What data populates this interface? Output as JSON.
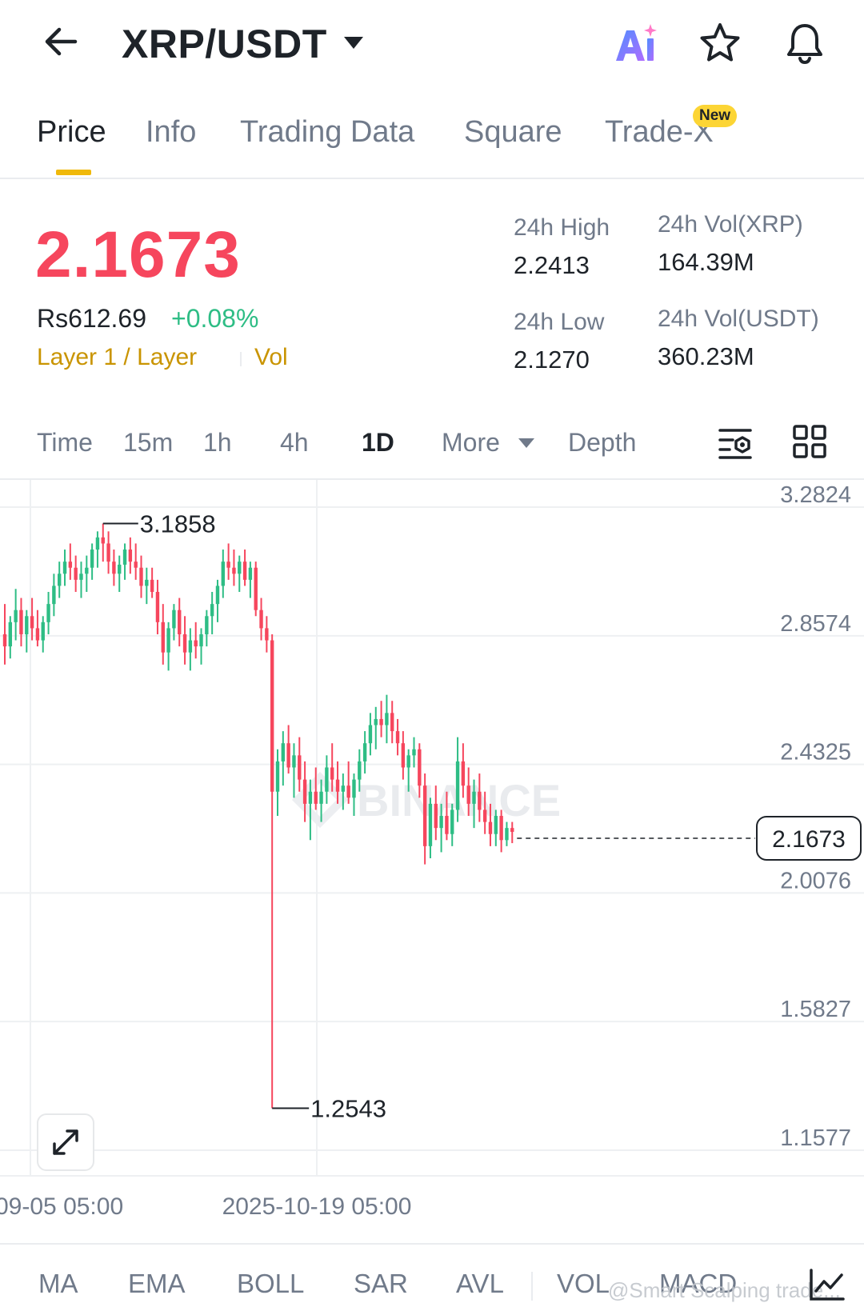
{
  "header": {
    "pair": "XRP/USDT",
    "icons": [
      "back-arrow-icon",
      "chevron-down-icon",
      "ai-icon",
      "star-icon",
      "bell-icon"
    ]
  },
  "tabs": [
    {
      "label": "Price",
      "active": true
    },
    {
      "label": "Info",
      "active": false
    },
    {
      "label": "Trading Data",
      "active": false
    },
    {
      "label": "Square",
      "active": false
    },
    {
      "label": "Trade-X",
      "active": false,
      "badge": "New"
    }
  ],
  "ticker": {
    "last_price": "2.1673",
    "fiat_price": "Rs612.69",
    "change_pct": "+0.08%",
    "tag": "Layer 1 / Layer",
    "tag2": "Vol",
    "high_label": "24h High",
    "high_value": "2.2413",
    "low_label": "24h Low",
    "low_value": "2.1270",
    "vol_base_label": "24h Vol(XRP)",
    "vol_base_value": "164.39M",
    "vol_quote_label": "24h Vol(USDT)",
    "vol_quote_value": "360.23M"
  },
  "intervals": [
    {
      "label": "Time",
      "active": false
    },
    {
      "label": "15m",
      "active": false
    },
    {
      "label": "1h",
      "active": false
    },
    {
      "label": "4h",
      "active": false
    },
    {
      "label": "1D",
      "active": true
    },
    {
      "label": "More",
      "active": false
    },
    {
      "label": "Depth",
      "active": false
    }
  ],
  "indicators": [
    "MA",
    "EMA",
    "BOLL",
    "SAR",
    "AVL",
    "VOL",
    "MACD"
  ],
  "watermark": {
    "brand": "BINANCE",
    "user": "@Smart Scalping trade..."
  },
  "colors": {
    "up": "#2ebd85",
    "down": "#f6465d",
    "accent": "#f0b90b"
  },
  "chart_data": {
    "type": "candlestick",
    "y_axis_ticks": [
      "3.2824",
      "2.8574",
      "2.4325",
      "2.0076",
      "1.5827",
      "1.1577"
    ],
    "ylim": [
      1.1577,
      3.2824
    ],
    "x_axis_ticks": [
      "09-05 05:00",
      "2025-10-19 05:00"
    ],
    "last_price_label": "2.1673",
    "max_annotation": "3.1858",
    "min_annotation": "1.2543",
    "grid": true,
    "candles": [
      [
        2.82,
        2.92,
        2.72,
        2.78
      ],
      [
        2.78,
        2.88,
        2.74,
        2.86
      ],
      [
        2.86,
        2.97,
        2.8,
        2.9
      ],
      [
        2.9,
        2.94,
        2.78,
        2.82
      ],
      [
        2.82,
        2.9,
        2.76,
        2.88
      ],
      [
        2.88,
        2.94,
        2.8,
        2.84
      ],
      [
        2.84,
        2.9,
        2.78,
        2.8
      ],
      [
        2.8,
        2.88,
        2.76,
        2.86
      ],
      [
        2.86,
        2.96,
        2.82,
        2.92
      ],
      [
        2.92,
        3.02,
        2.88,
        2.98
      ],
      [
        2.98,
        3.06,
        2.94,
        3.02
      ],
      [
        3.02,
        3.1,
        2.98,
        3.06
      ],
      [
        3.06,
        3.12,
        3.0,
        3.04
      ],
      [
        3.04,
        3.08,
        2.96,
        3.0
      ],
      [
        3.0,
        3.06,
        2.94,
        3.02
      ],
      [
        3.02,
        3.08,
        2.96,
        3.04
      ],
      [
        3.04,
        3.12,
        3.0,
        3.1
      ],
      [
        3.1,
        3.16,
        3.04,
        3.14
      ],
      [
        3.14,
        3.1858,
        3.06,
        3.12
      ],
      [
        3.12,
        3.16,
        3.02,
        3.06
      ],
      [
        3.06,
        3.1,
        2.98,
        3.02
      ],
      [
        3.02,
        3.08,
        2.96,
        3.05
      ],
      [
        3.05,
        3.12,
        3.0,
        3.1
      ],
      [
        3.1,
        3.14,
        3.02,
        3.06
      ],
      [
        3.06,
        3.12,
        3.0,
        3.04
      ],
      [
        3.04,
        3.08,
        2.94,
        2.98
      ],
      [
        2.98,
        3.04,
        2.92,
        3.0
      ],
      [
        3.0,
        3.04,
        2.94,
        2.96
      ],
      [
        2.96,
        3.0,
        2.82,
        2.86
      ],
      [
        2.86,
        2.92,
        2.72,
        2.76
      ],
      [
        2.76,
        2.86,
        2.7,
        2.84
      ],
      [
        2.84,
        2.92,
        2.8,
        2.9
      ],
      [
        2.9,
        2.94,
        2.78,
        2.82
      ],
      [
        2.82,
        2.88,
        2.72,
        2.76
      ],
      [
        2.76,
        2.84,
        2.7,
        2.8
      ],
      [
        2.8,
        2.86,
        2.74,
        2.78
      ],
      [
        2.78,
        2.84,
        2.72,
        2.82
      ],
      [
        2.82,
        2.9,
        2.78,
        2.88
      ],
      [
        2.88,
        2.96,
        2.82,
        2.92
      ],
      [
        2.92,
        3.0,
        2.86,
        2.98
      ],
      [
        2.98,
        3.1,
        2.94,
        3.06
      ],
      [
        3.06,
        3.12,
        3.0,
        3.04
      ],
      [
        3.04,
        3.1,
        2.98,
        3.02
      ],
      [
        3.02,
        3.08,
        2.96,
        3.06
      ],
      [
        3.06,
        3.1,
        2.98,
        3.0
      ],
      [
        3.0,
        3.06,
        2.94,
        3.04
      ],
      [
        3.04,
        3.06,
        2.88,
        2.9
      ],
      [
        2.9,
        2.94,
        2.8,
        2.84
      ],
      [
        2.84,
        2.88,
        2.76,
        2.8
      ],
      [
        2.8,
        2.82,
        1.2543,
        2.3
      ],
      [
        2.3,
        2.44,
        2.22,
        2.4
      ],
      [
        2.4,
        2.5,
        2.32,
        2.46
      ],
      [
        2.46,
        2.52,
        2.36,
        2.38
      ],
      [
        2.38,
        2.46,
        2.28,
        2.42
      ],
      [
        2.42,
        2.48,
        2.3,
        2.34
      ],
      [
        2.34,
        2.4,
        2.2,
        2.26
      ],
      [
        2.26,
        2.34,
        2.14,
        2.3
      ],
      [
        2.3,
        2.38,
        2.24,
        2.26
      ],
      [
        2.26,
        2.34,
        2.2,
        2.3
      ],
      [
        2.3,
        2.42,
        2.26,
        2.38
      ],
      [
        2.38,
        2.46,
        2.3,
        2.34
      ],
      [
        2.34,
        2.4,
        2.26,
        2.3
      ],
      [
        2.3,
        2.36,
        2.24,
        2.32
      ],
      [
        2.32,
        2.4,
        2.26,
        2.28
      ],
      [
        2.28,
        2.36,
        2.22,
        2.34
      ],
      [
        2.34,
        2.44,
        2.3,
        2.4
      ],
      [
        2.4,
        2.5,
        2.36,
        2.46
      ],
      [
        2.46,
        2.56,
        2.42,
        2.52
      ],
      [
        2.52,
        2.58,
        2.44,
        2.54
      ],
      [
        2.54,
        2.6,
        2.48,
        2.52
      ],
      [
        2.52,
        2.62,
        2.46,
        2.56
      ],
      [
        2.56,
        2.6,
        2.46,
        2.5
      ],
      [
        2.5,
        2.54,
        2.42,
        2.46
      ],
      [
        2.46,
        2.5,
        2.34,
        2.38
      ],
      [
        2.38,
        2.44,
        2.3,
        2.42
      ],
      [
        2.42,
        2.48,
        2.38,
        2.44
      ],
      [
        2.44,
        2.46,
        2.28,
        2.32
      ],
      [
        2.32,
        2.36,
        2.06,
        2.12
      ],
      [
        2.12,
        2.28,
        2.08,
        2.26
      ],
      [
        2.26,
        2.32,
        2.14,
        2.18
      ],
      [
        2.18,
        2.26,
        2.1,
        2.22
      ],
      [
        2.22,
        2.3,
        2.14,
        2.16
      ],
      [
        2.16,
        2.26,
        2.12,
        2.24
      ],
      [
        2.24,
        2.48,
        2.2,
        2.4
      ],
      [
        2.4,
        2.46,
        2.28,
        2.32
      ],
      [
        2.32,
        2.38,
        2.22,
        2.26
      ],
      [
        2.26,
        2.34,
        2.18,
        2.3
      ],
      [
        2.3,
        2.36,
        2.2,
        2.24
      ],
      [
        2.24,
        2.3,
        2.16,
        2.2
      ],
      [
        2.2,
        2.26,
        2.12,
        2.16
      ],
      [
        2.16,
        2.24,
        2.12,
        2.22
      ],
      [
        2.22,
        2.24,
        2.1,
        2.14
      ],
      [
        2.14,
        2.2,
        2.12,
        2.18
      ],
      [
        2.18,
        2.2,
        2.13,
        2.1673
      ]
    ]
  }
}
